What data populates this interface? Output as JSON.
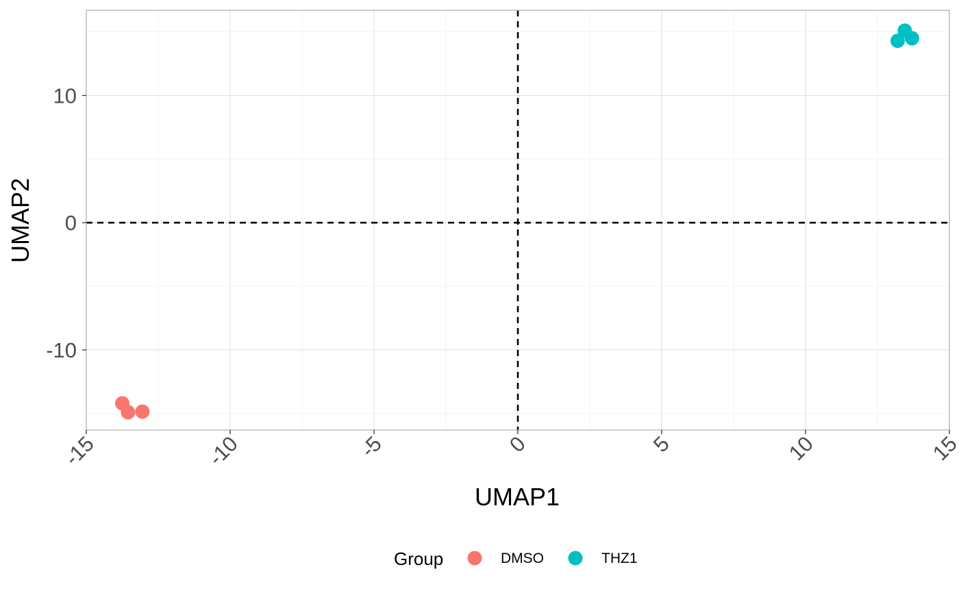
{
  "chart_data": {
    "type": "scatter",
    "title": "",
    "xlabel": "UMAP1",
    "ylabel": "UMAP2",
    "xlim": [
      -15,
      15
    ],
    "ylim": [
      -16.3,
      16.7
    ],
    "x_ticks": [
      -15,
      -10,
      -5,
      0,
      5,
      10,
      15
    ],
    "y_ticks": [
      -10,
      0,
      10
    ],
    "grid": true,
    "reference_lines": {
      "x": 0,
      "y": 0,
      "style": "dashed"
    },
    "legend": {
      "title": "Group",
      "position": "bottom"
    },
    "series": [
      {
        "name": "DMSO",
        "color": "#F8766D",
        "points": [
          {
            "x": -13.75,
            "y": -14.2
          },
          {
            "x": -13.55,
            "y": -14.9
          },
          {
            "x": -13.05,
            "y": -14.85
          }
        ]
      },
      {
        "name": "THZ1",
        "color": "#00BFC4",
        "points": [
          {
            "x": 13.45,
            "y": 15.1
          },
          {
            "x": 13.7,
            "y": 14.5
          },
          {
            "x": 13.2,
            "y": 14.3
          }
        ]
      }
    ]
  }
}
